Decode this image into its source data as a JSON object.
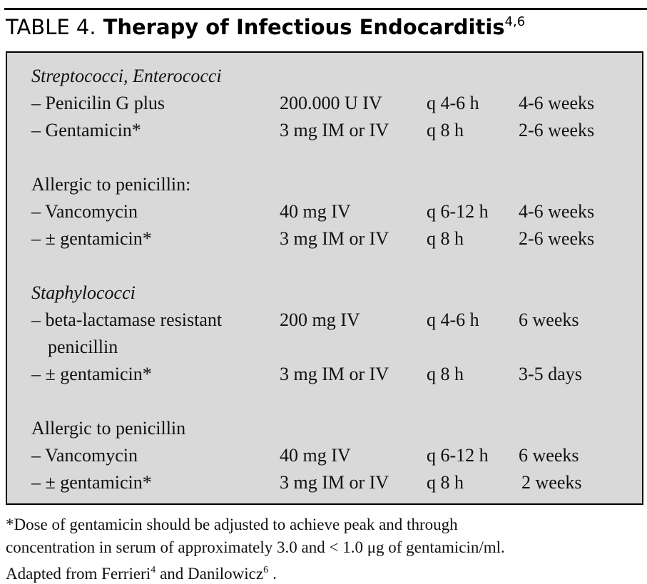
{
  "header": {
    "label": "TABLE 4.",
    "title": "Therapy of Infectious Endocarditis",
    "refs": "4,6"
  },
  "table": {
    "sections": [
      {
        "heading": "Streptococci, Enterococci",
        "italic": true,
        "rows": [
          {
            "drug": "– Penicilin G plus",
            "dose": "200.000 U IV",
            "freq": "q 4-6 h",
            "duration": "4-6 weeks"
          },
          {
            "drug": "– Gentamicin*",
            "dose": "3 mg IM or IV",
            "freq": "q 8 h",
            "duration": "2-6 weeks"
          }
        ]
      },
      {
        "heading": "Allergic to penicillin:",
        "italic": false,
        "rows": [
          {
            "drug": "– Vancomycin",
            "dose": "40 mg IV",
            "freq": "q 6-12 h",
            "duration": "4-6 weeks"
          },
          {
            "drug": "– ± gentamicin*",
            "dose": "3 mg IM or IV",
            "freq": "q 8 h",
            "duration": "2-6 weeks"
          }
        ]
      },
      {
        "heading": "Staphylococci",
        "italic": true,
        "rows": [
          {
            "drug": "– beta-lactamase resistant",
            "drug_cont": "penicillin",
            "dose": "200 mg IV",
            "freq": "q 4-6 h",
            "duration": "6 weeks"
          },
          {
            "drug": "– ± gentamicin*",
            "dose": "3 mg IM or IV",
            "freq": "q 8 h",
            "duration": "3-5 days"
          }
        ]
      },
      {
        "heading": "Allergic to penicillin",
        "italic": false,
        "rows": [
          {
            "drug": "– Vancomycin",
            "dose": "40 mg IV",
            "freq": "q 6-12 h",
            "duration": "6 weeks"
          },
          {
            "drug": "– ± gentamicin*",
            "dose": "3 mg IM or IV",
            "freq": "q 8 h",
            "duration": "2 weeks"
          }
        ]
      }
    ]
  },
  "footnote": {
    "lines": [
      [
        {
          "text": "*Dose of gentamicin should be adjusted to achieve peak and through"
        }
      ],
      [
        {
          "text": "concentration in serum of approximately 3.0 and < 1.0 μg of gentamicin/ml."
        }
      ],
      [
        {
          "text": "Adapted from Ferrieri"
        },
        {
          "sup": "4"
        },
        {
          "text": "and Danilowicz"
        },
        {
          "sup": "6"
        },
        {
          "text": "."
        }
      ]
    ]
  }
}
